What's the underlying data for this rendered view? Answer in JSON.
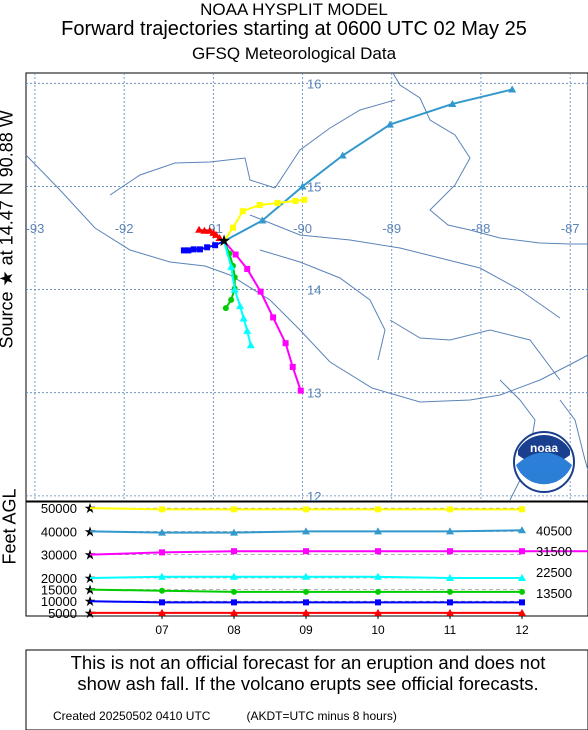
{
  "titles": {
    "line1": "NOAA HYSPLIT MODEL",
    "line2": "Forward trajectories starting at 0600 UTC 02 May 25",
    "line3": "GFSQ Meteorological Data"
  },
  "side_label": "Source ★ at  14.47 N  90.88 W",
  "logo_text": "noaa",
  "height_axis_label": "Feet AGL",
  "disclaimer": {
    "line1": "This is not an official forecast for an eruption and does not",
    "line2": "show ash fall. If the volcano erupts see official forecasts."
  },
  "footer": {
    "created": "Created 20250502 0410 UTC",
    "timezone": "(AKDT=UTC minus 8 hours)"
  },
  "colors": {
    "map_line": "#5b84b8",
    "grid": "#5b84b8",
    "red": "#ff0000",
    "blue": "#0000ff",
    "green": "#00cc00",
    "cyan": "#00ffff",
    "magenta": "#ff00ff",
    "teal": "#3399cc",
    "yellow": "#ffff00"
  },
  "chart_data": {
    "type": "map-trajectory",
    "source": {
      "lat": 14.47,
      "lon": -90.88
    },
    "lon_ticks": [
      -93,
      -92,
      -91,
      -90,
      -89,
      -88,
      -87
    ],
    "lon_tick_labels": [
      "-93",
      "-92",
      "-91",
      "-90",
      "-89",
      "-88",
      "-87"
    ],
    "lat_ticks": [
      12,
      13,
      14,
      15,
      16
    ],
    "lat_tick_labels": [
      "12",
      "13",
      "14",
      "15",
      "16"
    ],
    "xlim": [
      -93.1,
      -86.8
    ],
    "ylim": [
      11.95,
      16.1
    ],
    "trajectories": [
      {
        "start_ft": 5000,
        "color": "red",
        "lonlat": [
          [
            -90.88,
            14.47
          ],
          [
            -90.93,
            14.5
          ],
          [
            -90.97,
            14.53
          ],
          [
            -91.0,
            14.55
          ],
          [
            -91.04,
            14.57
          ],
          [
            -91.1,
            14.57
          ],
          [
            -91.16,
            14.58
          ]
        ],
        "heights": [
          5000,
          5000,
          5000,
          5000,
          5000,
          5000,
          5000
        ]
      },
      {
        "start_ft": 10000,
        "color": "blue",
        "lonlat": [
          [
            -90.88,
            14.47
          ],
          [
            -90.98,
            14.43
          ],
          [
            -91.07,
            14.41
          ],
          [
            -91.15,
            14.39
          ],
          [
            -91.22,
            14.39
          ],
          [
            -91.28,
            14.38
          ],
          [
            -91.33,
            14.38
          ]
        ],
        "heights": [
          10000,
          9500,
          9500,
          9500,
          9500,
          9500,
          9500
        ]
      },
      {
        "start_ft": 15000,
        "color": "green",
        "lonlat": [
          [
            -90.88,
            14.47
          ],
          [
            -90.82,
            14.35
          ],
          [
            -90.78,
            14.23
          ],
          [
            -90.76,
            14.12
          ],
          [
            -90.76,
            14.01
          ],
          [
            -90.8,
            13.9
          ],
          [
            -90.86,
            13.82
          ]
        ],
        "heights": [
          15000,
          14500,
          14000,
          14000,
          14000,
          14000,
          14000
        ]
      },
      {
        "start_ft": 20000,
        "color": "cyan",
        "lonlat": [
          [
            -90.88,
            14.47
          ],
          [
            -90.8,
            14.22
          ],
          [
            -90.76,
            14.0
          ],
          [
            -90.7,
            13.84
          ],
          [
            -90.66,
            13.72
          ],
          [
            -90.62,
            13.6
          ],
          [
            -90.58,
            13.46
          ]
        ],
        "heights": [
          20000,
          20500,
          20500,
          20500,
          20500,
          20000,
          20000
        ]
      },
      {
        "start_ft": 30000,
        "color": "magenta",
        "lonlat": [
          [
            -90.88,
            14.47
          ],
          [
            -90.75,
            14.34
          ],
          [
            -90.62,
            14.2
          ],
          [
            -90.47,
            13.98
          ],
          [
            -90.33,
            13.73
          ],
          [
            -90.19,
            13.48
          ],
          [
            -90.11,
            13.25
          ],
          [
            -90.02,
            13.02
          ]
        ],
        "heights": [
          30000,
          31000,
          31500,
          31500,
          31500,
          31500,
          31500,
          31500
        ]
      },
      {
        "start_ft": 40000,
        "color": "teal",
        "lonlat": [
          [
            -90.88,
            14.47
          ],
          [
            -90.45,
            14.67
          ],
          [
            -90.0,
            15.0
          ],
          [
            -89.55,
            15.3
          ],
          [
            -89.02,
            15.6
          ],
          [
            -88.32,
            15.8
          ],
          [
            -87.65,
            15.94
          ]
        ],
        "heights": [
          40000,
          39500,
          39500,
          40000,
          40000,
          40000,
          40500
        ]
      },
      {
        "start_ft": 50000,
        "color": "yellow",
        "lonlat": [
          [
            -90.88,
            14.47
          ],
          [
            -90.78,
            14.6
          ],
          [
            -90.67,
            14.76
          ],
          [
            -90.48,
            14.82
          ],
          [
            -90.28,
            14.84
          ],
          [
            -90.08,
            14.86
          ],
          [
            -89.98,
            14.87
          ]
        ],
        "heights": [
          50000,
          49500,
          49500,
          49500,
          49500,
          49500,
          49500
        ]
      }
    ],
    "height_panel": {
      "ylabel": "Feet AGL",
      "yticks": [
        5000,
        10000,
        15000,
        20000,
        30000,
        40000,
        50000
      ],
      "ytick_labels": [
        "5000",
        "10000",
        "15000",
        "20000",
        "30000",
        "40000",
        "50000"
      ],
      "xtick_labels": [
        "07",
        "08",
        "09",
        "10",
        "11",
        "12"
      ],
      "right_labels": [
        "40500",
        "31500",
        "22500",
        "13500"
      ]
    }
  }
}
